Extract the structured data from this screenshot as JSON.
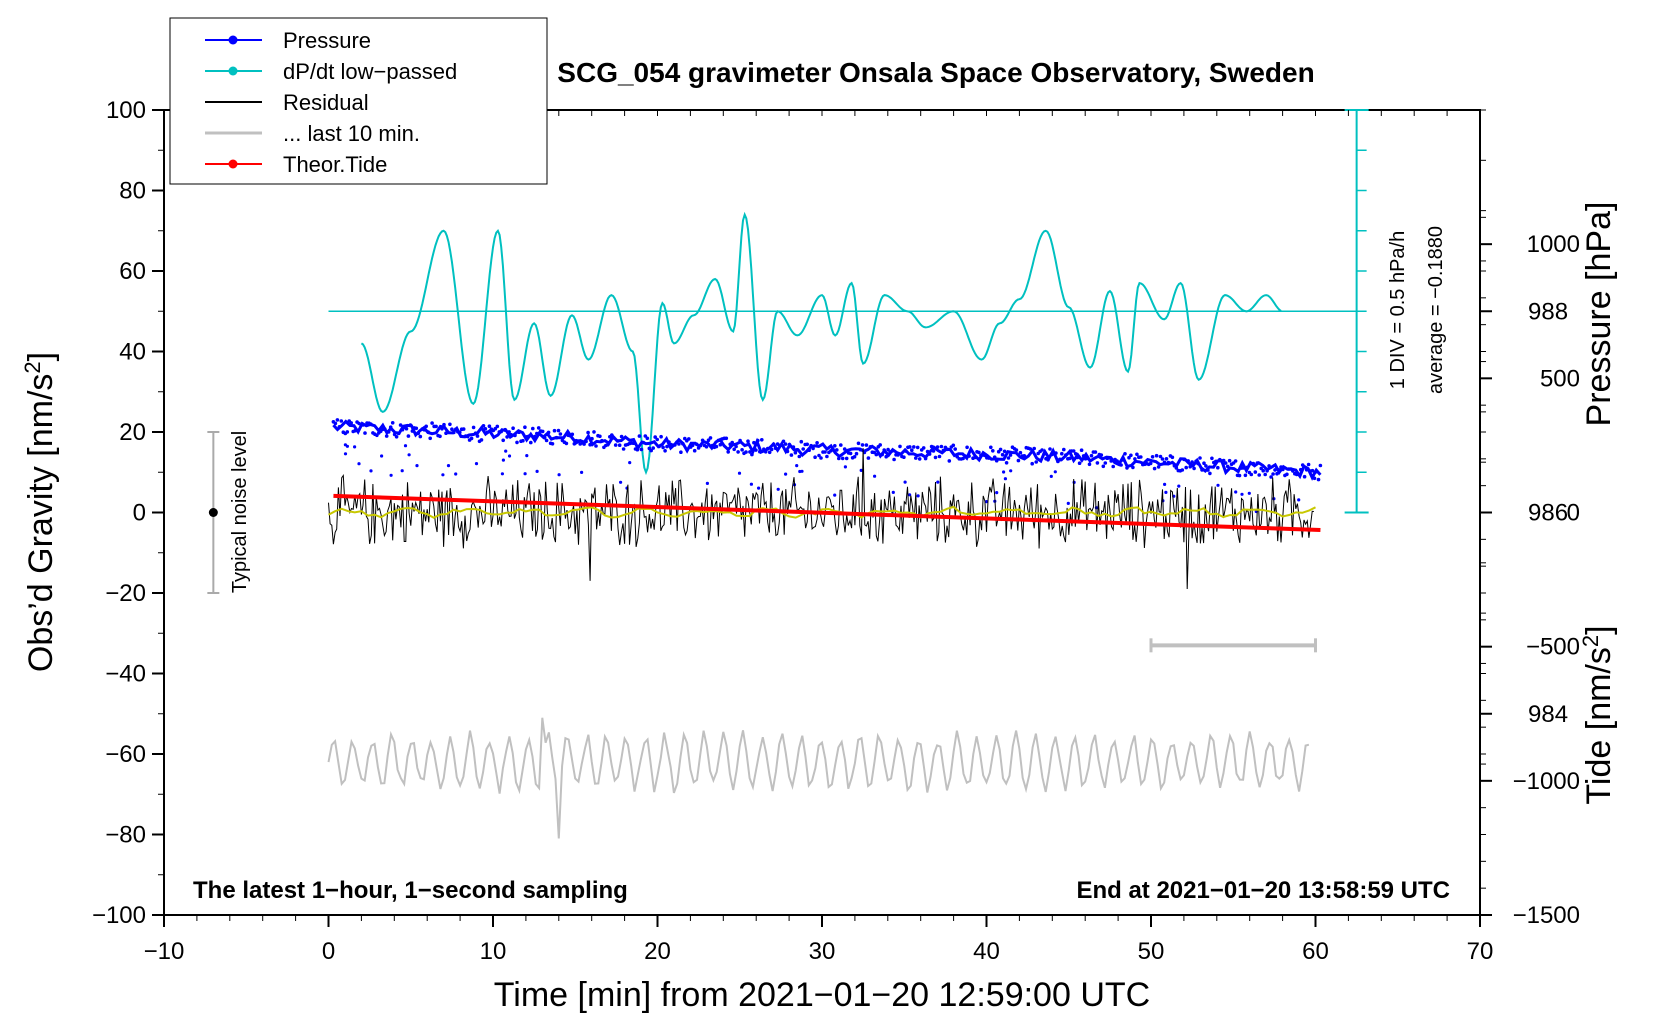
{
  "chart_data": {
    "type": "line",
    "title": "SCG_054 gravimeter Onsala Space Observatory, Sweden",
    "xlabel": "Time [min] from 2021−01−20 12:59:00 UTC",
    "ylabel_left_prefix": "Obs’d Gravity [nm/s",
    "ylabel_left_sup": "2",
    "ylabel_left_suffix": "]",
    "ylabel_pressure": "Pressure [hPa]",
    "ylabel_tide_prefix": "Tide [nm/s",
    "ylabel_tide_sup": "2",
    "ylabel_tide_suffix": "]",
    "xlim": [
      -10,
      70
    ],
    "ylim_left": [
      -100,
      100
    ],
    "pressure_lim": [
      982,
      990
    ],
    "tide_lim": [
      -1500,
      1500
    ],
    "xticks": [
      "−10",
      "0",
      "10",
      "20",
      "30",
      "40",
      "50",
      "60",
      "70"
    ],
    "xtick_values": [
      -10,
      0,
      10,
      20,
      30,
      40,
      50,
      60,
      70
    ],
    "yticks_left": [
      "100",
      "80",
      "60",
      "40",
      "20",
      "0",
      "−20",
      "−40",
      "−60",
      "−80",
      "−100"
    ],
    "ytick_left_values": [
      100,
      80,
      60,
      40,
      20,
      0,
      -20,
      -40,
      -60,
      -80,
      -100
    ],
    "pressure_ticks": [
      "988",
      "986",
      "984"
    ],
    "pressure_tick_values": [
      988,
      986,
      984
    ],
    "tide_ticks": [
      "1000",
      "500",
      "0",
      "−500",
      "−1000",
      "−1500"
    ],
    "tide_tick_values": [
      1000,
      500,
      0,
      -500,
      -1000,
      -1500
    ],
    "legend": [
      {
        "label": "Pressure",
        "color": "#0000ff",
        "style": "line-dot"
      },
      {
        "label": "dP/dt low−passed",
        "color": "#00c0c0",
        "style": "line-dot"
      },
      {
        "label": "Residual",
        "color": "#000000",
        "style": "line"
      },
      {
        "label": "... last 10 min.",
        "color": "#c0c0c0",
        "style": "line"
      },
      {
        "label": "Theor.Tide",
        "color": "#ff0000",
        "style": "line-dot"
      }
    ],
    "annotations": {
      "bottom_left": "The latest 1−hour, 1−second sampling",
      "bottom_right": "End at 2021−01−20 13:58:59 UTC",
      "div_label": "1 DIV = 0.5 hPa/h",
      "average_label": "average = −0.1880",
      "noise_label": "Typical noise level"
    },
    "noise_bar": {
      "x": -7,
      "center": 0,
      "range": [
        -20,
        20
      ]
    },
    "ten_min_bar": {
      "x_range": [
        50,
        60
      ],
      "gravity_level": -33
    },
    "series": [
      {
        "name": "Pressure",
        "axis": "pressure",
        "color": "#0000ff",
        "x": [
          0.3,
          5,
          10,
          15,
          20,
          25,
          30,
          35,
          40,
          45,
          50,
          55,
          60.3
        ],
        "values": [
          986.85,
          986.82,
          986.78,
          986.75,
          986.68,
          986.66,
          986.62,
          986.6,
          986.58,
          986.55,
          986.5,
          986.45,
          986.4
        ]
      },
      {
        "name": "dP/dt low−passed",
        "axis": "left_scaled",
        "color": "#00c0c0",
        "baseline": 50,
        "x": [
          2.0,
          3.3,
          5.0,
          7.0,
          8.8,
          10.3,
          11.3,
          12.5,
          13.5,
          14.8,
          15.8,
          17.2,
          18.5,
          19.3,
          20.3,
          21.0,
          22.2,
          23.5,
          24.6,
          25.3,
          26.4,
          27.3,
          28.5,
          30.0,
          30.8,
          31.8,
          32.5,
          33.8,
          35.2,
          36.3,
          38.0,
          39.7,
          40.8,
          42.0,
          43.6,
          45.0,
          46.3,
          47.5,
          48.6,
          49.3,
          50.8,
          51.8,
          52.9,
          54.5,
          55.8,
          57.0,
          58.0
        ],
        "values": [
          42,
          25,
          45,
          70,
          27,
          70,
          28,
          47,
          29,
          49,
          38,
          54,
          40,
          10,
          52,
          42,
          49,
          58,
          45,
          74,
          28,
          50,
          44,
          54,
          44,
          57,
          37,
          54,
          50,
          46,
          50,
          38,
          47,
          53,
          70,
          51,
          36,
          55,
          35,
          57,
          48,
          57,
          33,
          54,
          50,
          54,
          50
        ]
      },
      {
        "name": "Residual",
        "axis": "left",
        "color": "#000000",
        "x": [
          0,
          60
        ],
        "values": [
          0,
          0
        ],
        "amplitude": 10,
        "extremes": [
          {
            "x": 15.9,
            "value": -17
          },
          {
            "x": 32.5,
            "value": 16
          },
          {
            "x": 52.2,
            "value": -19
          }
        ]
      },
      {
        "name": "... last 10 min.",
        "axis": "left",
        "color": "#c0c0c0",
        "x": [
          0,
          60
        ],
        "values": [
          -62,
          -62
        ],
        "amplitude": 8,
        "extremes": [
          {
            "x": 13.9,
            "value": -81
          },
          {
            "x": 13.0,
            "value": -51
          }
        ]
      },
      {
        "name": "Theor.Tide",
        "axis": "tide",
        "color": "#ff0000",
        "x": [
          0.3,
          60.3
        ],
        "values": [
          62,
          -65
        ]
      }
    ]
  }
}
